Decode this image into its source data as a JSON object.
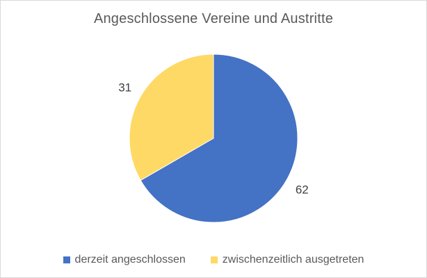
{
  "chart_data": {
    "type": "pie",
    "title": "Angeschlossene Vereine und Austritte",
    "slices": [
      {
        "label": "derzeit angeschlossen",
        "value": 62,
        "color": "#4472C4"
      },
      {
        "label": "zwischenzeitlich ausgetreten",
        "value": 31,
        "color": "#FFD966"
      }
    ],
    "legend_position": "bottom",
    "data_labels": "outside"
  }
}
